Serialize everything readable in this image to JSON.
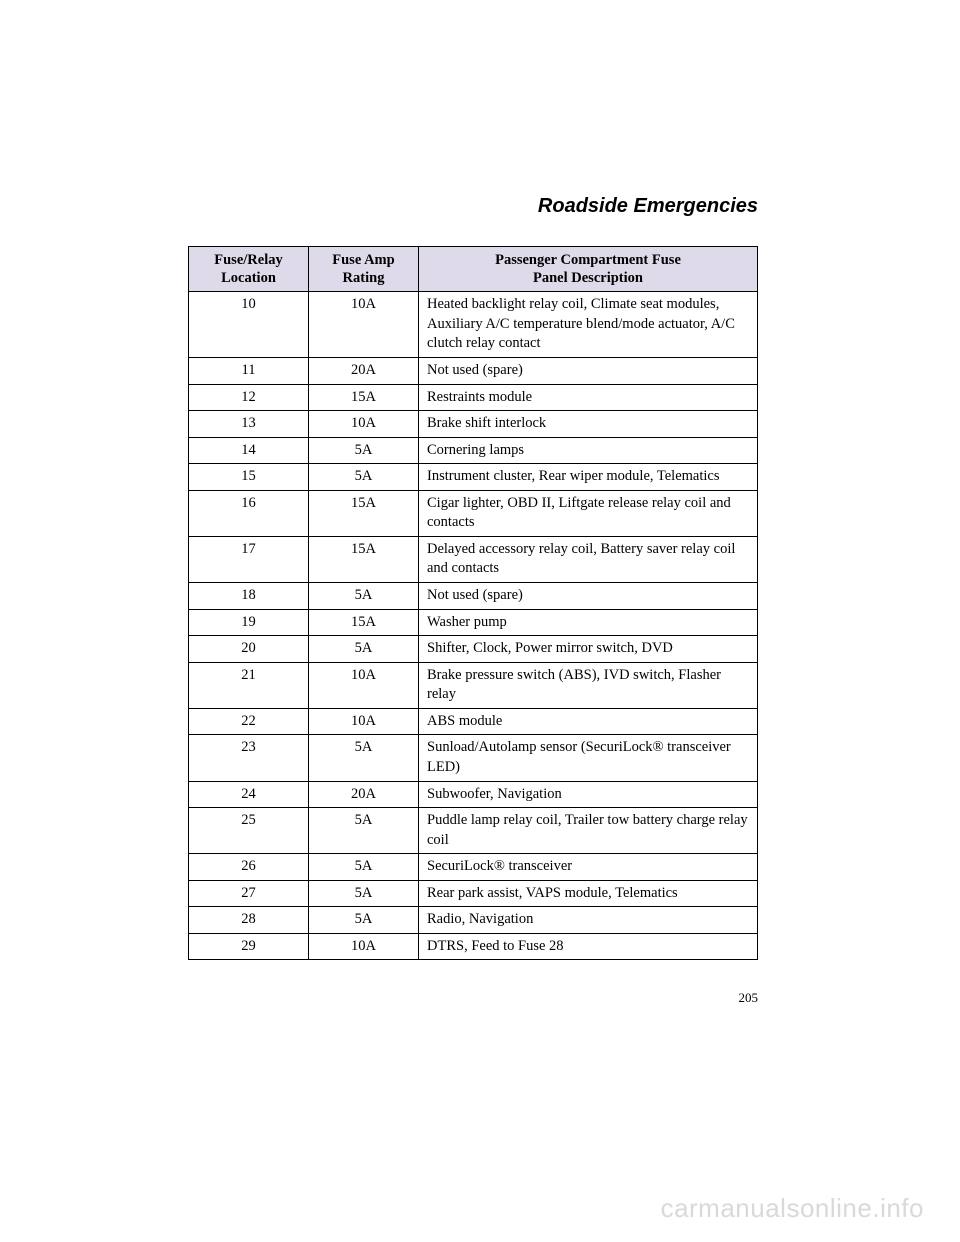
{
  "section_title": "Roadside Emergencies",
  "page_number": "205",
  "watermark": "carmanualsonline.info",
  "table": {
    "headers": {
      "col1_line1": "Fuse/Relay",
      "col1_line2": "Location",
      "col2_line1": "Fuse Amp",
      "col2_line2": "Rating",
      "col3_line1": "Passenger Compartment Fuse",
      "col3_line2": "Panel Description"
    },
    "rows": [
      {
        "loc": "10",
        "amp": "10A",
        "desc": "Heated backlight relay coil, Climate seat modules, Auxiliary A/C temperature blend/mode actuator, A/C clutch relay contact"
      },
      {
        "loc": "11",
        "amp": "20A",
        "desc": "Not used (spare)"
      },
      {
        "loc": "12",
        "amp": "15A",
        "desc": "Restraints module"
      },
      {
        "loc": "13",
        "amp": "10A",
        "desc": "Brake shift interlock"
      },
      {
        "loc": "14",
        "amp": "5A",
        "desc": "Cornering lamps"
      },
      {
        "loc": "15",
        "amp": "5A",
        "desc": "Instrument cluster, Rear wiper module, Telematics"
      },
      {
        "loc": "16",
        "amp": "15A",
        "desc": "Cigar lighter, OBD II, Liftgate release relay coil and contacts"
      },
      {
        "loc": "17",
        "amp": "15A",
        "desc": "Delayed accessory relay coil, Battery saver relay coil and contacts"
      },
      {
        "loc": "18",
        "amp": "5A",
        "desc": "Not used (spare)"
      },
      {
        "loc": "19",
        "amp": "15A",
        "desc": "Washer pump"
      },
      {
        "loc": "20",
        "amp": "5A",
        "desc": "Shifter, Clock, Power mirror switch, DVD"
      },
      {
        "loc": "21",
        "amp": "10A",
        "desc": "Brake pressure switch (ABS), IVD switch, Flasher relay"
      },
      {
        "loc": "22",
        "amp": "10A",
        "desc": "ABS module"
      },
      {
        "loc": "23",
        "amp": "5A",
        "desc": "Sunload/Autolamp sensor (SecuriLock® transceiver LED)"
      },
      {
        "loc": "24",
        "amp": "20A",
        "desc": "Subwoofer, Navigation"
      },
      {
        "loc": "25",
        "amp": "5A",
        "desc": "Puddle lamp relay coil, Trailer tow battery charge relay coil"
      },
      {
        "loc": "26",
        "amp": "5A",
        "desc": "SecuriLock® transceiver"
      },
      {
        "loc": "27",
        "amp": "5A",
        "desc": "Rear park assist, VAPS module, Telematics"
      },
      {
        "loc": "28",
        "amp": "5A",
        "desc": "Radio, Navigation"
      },
      {
        "loc": "29",
        "amp": "10A",
        "desc": "DTRS, Feed to Fuse 28"
      }
    ]
  },
  "colors": {
    "header_bg": "#dedaea",
    "border": "#000000",
    "text": "#000000",
    "watermark": "#d9d9d9",
    "background": "#ffffff"
  }
}
